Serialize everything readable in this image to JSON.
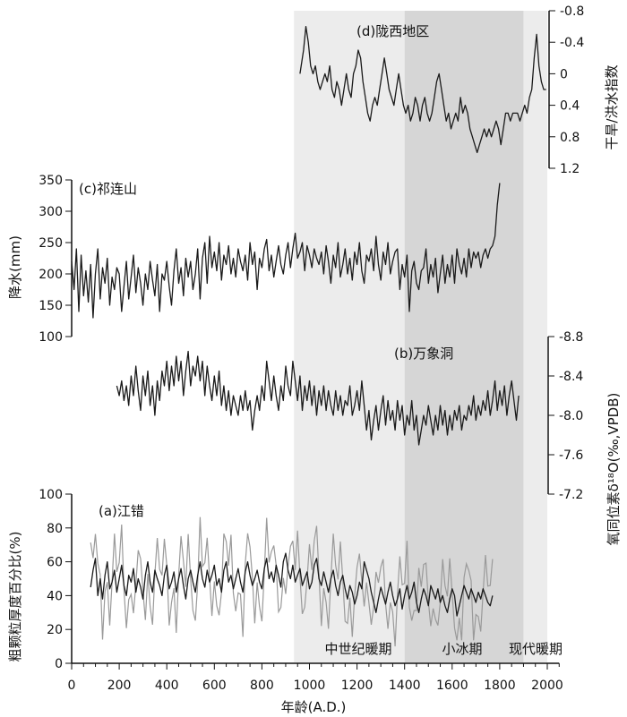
{
  "chart_data": {
    "type": "line",
    "x_axis": {
      "label": "年龄(A.D.)",
      "range": [
        0,
        2050
      ],
      "ticks": [
        "0",
        "200",
        "400",
        "600",
        "800",
        "1000",
        "1200",
        "1400",
        "1600",
        "1800",
        "2000"
      ],
      "minor_step": 50
    },
    "periods": [
      {
        "label": "中世纪暖期",
        "start": 935,
        "end": 1400,
        "shade": "#ececec"
      },
      {
        "label": "小冰期",
        "start": 1400,
        "end": 1900,
        "shade": "#d6d6d6"
      },
      {
        "label": "现代暖期",
        "start": 1900,
        "end": 2000,
        "shade": "#ececec"
      }
    ],
    "panels": [
      {
        "id": "d",
        "title": "(d)陇西地区",
        "ylabel": "干旱/洪水指数",
        "yaxis_side": "right",
        "inverted": true,
        "ylim": [
          -0.8,
          1.2
        ],
        "ticks": [
          "-0.8",
          "-0.4",
          "0",
          "0.4",
          "0.8",
          "1.2"
        ],
        "x": [
          960,
          975,
          985,
          995,
          1005,
          1015,
          1025,
          1035,
          1045,
          1055,
          1065,
          1075,
          1085,
          1095,
          1105,
          1115,
          1125,
          1135,
          1145,
          1155,
          1165,
          1175,
          1185,
          1195,
          1205,
          1215,
          1225,
          1235,
          1245,
          1255,
          1265,
          1275,
          1285,
          1295,
          1305,
          1315,
          1325,
          1335,
          1345,
          1355,
          1365,
          1375,
          1385,
          1395,
          1405,
          1415,
          1425,
          1435,
          1445,
          1455,
          1465,
          1475,
          1485,
          1495,
          1505,
          1515,
          1525,
          1535,
          1545,
          1555,
          1565,
          1575,
          1585,
          1595,
          1605,
          1615,
          1625,
          1635,
          1645,
          1655,
          1665,
          1675,
          1685,
          1695,
          1705,
          1715,
          1725,
          1735,
          1745,
          1755,
          1765,
          1775,
          1785,
          1795,
          1805,
          1815,
          1825,
          1835,
          1845,
          1855,
          1865,
          1875,
          1885,
          1895,
          1905,
          1915,
          1925,
          1935,
          1945,
          1955,
          1965,
          1975,
          1985,
          1995
        ],
        "values": [
          0.0,
          -0.3,
          -0.6,
          -0.4,
          -0.1,
          0.0,
          -0.1,
          0.1,
          0.2,
          0.1,
          0.0,
          0.1,
          -0.1,
          0.2,
          0.3,
          0.1,
          0.2,
          0.4,
          0.2,
          0.0,
          0.2,
          0.3,
          0.0,
          -0.1,
          -0.3,
          -0.2,
          0.1,
          0.3,
          0.5,
          0.6,
          0.4,
          0.3,
          0.4,
          0.2,
          0.0,
          -0.2,
          0.0,
          0.2,
          0.3,
          0.4,
          0.2,
          0.0,
          0.2,
          0.4,
          0.5,
          0.4,
          0.6,
          0.5,
          0.3,
          0.4,
          0.6,
          0.4,
          0.3,
          0.5,
          0.6,
          0.5,
          0.3,
          0.1,
          0.0,
          0.2,
          0.4,
          0.6,
          0.5,
          0.7,
          0.6,
          0.5,
          0.6,
          0.3,
          0.5,
          0.4,
          0.5,
          0.7,
          0.8,
          0.9,
          1.0,
          0.9,
          0.8,
          0.7,
          0.8,
          0.7,
          0.8,
          0.7,
          0.6,
          0.7,
          0.9,
          0.7,
          0.5,
          0.5,
          0.6,
          0.5,
          0.5,
          0.5,
          0.6,
          0.5,
          0.4,
          0.5,
          0.3,
          0.2,
          -0.2,
          -0.5,
          -0.1,
          0.1,
          0.2,
          0.2
        ]
      },
      {
        "id": "c",
        "title": "(c)祁连山",
        "ylabel": "降水(mm)",
        "yaxis_side": "left",
        "ylim": [
          100,
          350
        ],
        "ticks": [
          "100",
          "150",
          "200",
          "250",
          "300",
          "350"
        ],
        "x_start": 0,
        "x_step": 10,
        "values": [
          220,
          175,
          240,
          140,
          230,
          165,
          205,
          155,
          215,
          130,
          200,
          240,
          160,
          210,
          185,
          225,
          150,
          195,
          175,
          210,
          200,
          140,
          180,
          220,
          160,
          195,
          230,
          170,
          210,
          185,
          150,
          200,
          175,
          220,
          190,
          165,
          215,
          140,
          200,
          190,
          220,
          180,
          150,
          205,
          240,
          185,
          210,
          165,
          225,
          195,
          220,
          175,
          200,
          240,
          160,
          225,
          250,
          185,
          260,
          210,
          235,
          205,
          250,
          190,
          230,
          215,
          245,
          200,
          225,
          195,
          240,
          220,
          205,
          230,
          190,
          250,
          215,
          235,
          175,
          225,
          210,
          240,
          255,
          205,
          230,
          195,
          220,
          245,
          215,
          200,
          230,
          250,
          210,
          240,
          265,
          225,
          235,
          250,
          205,
          245,
          230,
          210,
          240,
          225,
          215,
          235,
          200,
          245,
          220,
          185,
          230,
          210,
          250,
          195,
          215,
          240,
          200,
          225,
          190,
          235,
          215,
          250,
          205,
          185,
          230,
          220,
          240,
          205,
          260,
          215,
          190,
          235,
          215,
          250,
          200,
          220,
          235,
          240,
          175,
          215,
          195,
          230,
          140,
          205,
          220,
          185,
          175,
          205,
          210,
          240,
          185,
          215,
          195,
          225,
          170,
          200,
          230,
          185,
          215,
          195,
          230,
          185,
          240,
          215,
          200,
          225,
          195,
          240,
          210,
          235,
          225,
          235,
          210,
          230,
          240,
          225,
          240,
          245,
          260,
          310,
          345
        ]
      },
      {
        "id": "b",
        "title": "(b)万象洞",
        "ylabel": "氧同位素δ¹⁸O(‰,VPDB)",
        "yaxis_side": "right",
        "inverted": true,
        "ylim": [
          -8.8,
          -7.2
        ],
        "ticks": [
          "-8.8",
          "-8.4",
          "-8.0",
          "-7.6",
          "-7.2"
        ],
        "x_start": 190,
        "x_step": 10,
        "values": [
          -8.3,
          -8.2,
          -8.35,
          -8.15,
          -8.3,
          -8.1,
          -8.4,
          -8.2,
          -8.5,
          -8.25,
          -8.05,
          -8.4,
          -8.2,
          -8.45,
          -8.1,
          -8.3,
          -8.0,
          -8.35,
          -8.15,
          -8.45,
          -8.3,
          -8.55,
          -8.25,
          -8.5,
          -8.3,
          -8.6,
          -8.35,
          -8.55,
          -8.2,
          -8.45,
          -8.65,
          -8.3,
          -8.5,
          -8.4,
          -8.6,
          -8.35,
          -8.55,
          -8.2,
          -8.5,
          -8.3,
          -8.15,
          -8.4,
          -8.2,
          -8.45,
          -8.1,
          -8.3,
          -8.05,
          -8.25,
          -8.0,
          -8.2,
          -8.1,
          -8.0,
          -8.2,
          -8.05,
          -8.25,
          -8.05,
          -8.15,
          -7.85,
          -8.05,
          -8.2,
          -8.05,
          -8.3,
          -8.15,
          -8.55,
          -8.35,
          -8.15,
          -8.4,
          -8.2,
          -8.05,
          -8.3,
          -8.15,
          -8.5,
          -8.3,
          -8.2,
          -8.55,
          -8.35,
          -8.15,
          -8.4,
          -8.05,
          -8.3,
          -8.15,
          -8.35,
          -8.1,
          -8.3,
          -8.0,
          -8.25,
          -8.1,
          -8.3,
          -8.05,
          -8.25,
          -8.1,
          -8.0,
          -8.25,
          -8.05,
          -8.2,
          -8.0,
          -8.15,
          -8.1,
          -8.3,
          -8.0,
          -8.1,
          -8.25,
          -8.05,
          -8.35,
          -8.1,
          -7.85,
          -8.05,
          -7.75,
          -7.95,
          -8.1,
          -7.85,
          -8.05,
          -8.2,
          -7.9,
          -8.15,
          -7.95,
          -8.05,
          -7.85,
          -8.15,
          -7.95,
          -8.1,
          -7.8,
          -8.0,
          -7.9,
          -8.15,
          -7.85,
          -8.0,
          -7.7,
          -7.85,
          -8.0,
          -7.9,
          -8.1,
          -7.95,
          -7.8,
          -8.0,
          -7.85,
          -8.1,
          -7.9,
          -8.05,
          -7.8,
          -8.0,
          -7.85,
          -8.05,
          -7.95,
          -8.1,
          -7.85,
          -8.0,
          -7.95,
          -8.1,
          -8.0,
          -8.2,
          -7.95,
          -8.1,
          -8.0,
          -8.15,
          -8.05,
          -8.25,
          -8.0,
          -8.15,
          -8.35,
          -8.05,
          -8.25,
          -8.1,
          -8.3,
          -8.0,
          -8.2,
          -8.35,
          -8.15,
          -7.95,
          -8.2
        ]
      },
      {
        "id": "a",
        "title": "(a)江错",
        "ylabel": "粗颗粒厚度百分比(%)",
        "yaxis_side": "left",
        "ylim": [
          0,
          100
        ],
        "ticks": [
          "0",
          "20",
          "40",
          "60",
          "80",
          "100"
        ],
        "x_start": 80,
        "x_step": 10,
        "values": [
          45,
          55,
          62,
          40,
          50,
          38,
          52,
          60,
          44,
          48,
          55,
          42,
          50,
          58,
          46,
          40,
          52,
          48,
          56,
          42,
          50,
          45,
          38,
          52,
          60,
          48,
          42,
          55,
          50,
          46,
          40,
          52,
          58,
          44,
          48,
          54,
          42,
          50,
          56,
          46,
          38,
          50,
          55,
          48,
          42,
          52,
          60,
          50,
          45,
          55,
          48,
          52,
          58,
          46,
          50,
          42,
          55,
          60,
          48,
          52,
          44,
          50,
          56,
          48,
          42,
          54,
          60,
          52,
          46,
          50,
          55,
          48,
          44,
          56,
          62,
          50,
          54,
          48,
          58,
          52,
          45,
          60,
          65,
          55,
          50,
          58,
          48,
          52,
          56,
          46,
          50,
          54,
          44,
          48,
          58,
          62,
          50,
          46,
          54,
          48,
          42,
          50,
          55,
          46,
          40,
          48,
          52,
          44,
          38,
          46,
          42,
          35,
          40,
          48,
          44,
          60,
          55,
          50,
          42,
          36,
          30,
          38,
          45,
          40,
          35,
          42,
          48,
          40,
          34,
          38,
          44,
          32,
          40,
          46,
          38,
          42,
          48,
          36,
          30,
          38,
          44,
          40,
          34,
          46,
          42,
          38,
          44,
          36,
          40,
          34,
          30,
          38,
          44,
          40,
          28,
          34,
          40,
          46,
          42,
          38,
          44,
          40,
          36,
          42,
          38,
          44,
          40,
          36,
          34,
          40
        ]
      }
    ]
  }
}
